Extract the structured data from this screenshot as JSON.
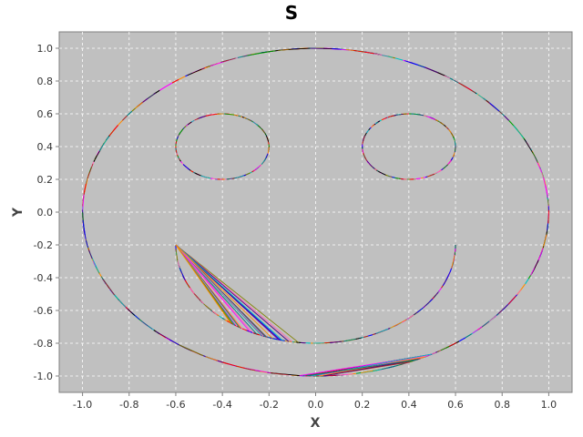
{
  "chart_data": {
    "type": "line",
    "title": "S",
    "xlabel": "X",
    "ylabel": "Y",
    "xlim": [
      -1.1,
      1.1
    ],
    "ylim": [
      -1.1,
      1.1
    ],
    "x_ticks": [
      -1.0,
      -0.8,
      -0.6,
      -0.4,
      -0.2,
      0.0,
      0.2,
      0.4,
      0.6,
      0.8,
      1.0
    ],
    "y_ticks": [
      -1.0,
      -0.8,
      -0.6,
      -0.4,
      -0.2,
      0.0,
      0.2,
      0.4,
      0.6,
      0.8,
      1.0
    ],
    "x_tick_labels": [
      "-1.0",
      "-0.8",
      "-0.6",
      "-0.4",
      "-0.2",
      "0.0",
      "0.2",
      "0.4",
      "0.6",
      "0.8",
      "1.0"
    ],
    "y_tick_labels": [
      "-1.0",
      "-0.8",
      "-0.6",
      "-0.4",
      "-0.2",
      "0.0",
      "0.2",
      "0.4",
      "0.6",
      "0.8",
      "1.0"
    ],
    "grid": true,
    "plot_background": "#c0c0c0",
    "legend": "none",
    "shapes": [
      {
        "kind": "circle",
        "cx": 0.0,
        "cy": 0.0,
        "r": 1.0
      },
      {
        "kind": "circle",
        "cx": -0.4,
        "cy": 0.4,
        "r": 0.2
      },
      {
        "kind": "circle",
        "cx": 0.4,
        "cy": 0.4,
        "r": 0.2
      },
      {
        "kind": "arc",
        "cx": 0.0,
        "cy": -0.2,
        "r": 0.6,
        "start_deg": 180,
        "end_deg": 360
      }
    ],
    "segment_colors": [
      "#ff0000",
      "#0000ff",
      "#00a000",
      "#ff00ff",
      "#00c0c0",
      "#000000",
      "#808000",
      "#a52a2a",
      "#ff8c00",
      "#4b0082",
      "#008080",
      "#ff69b4"
    ]
  }
}
